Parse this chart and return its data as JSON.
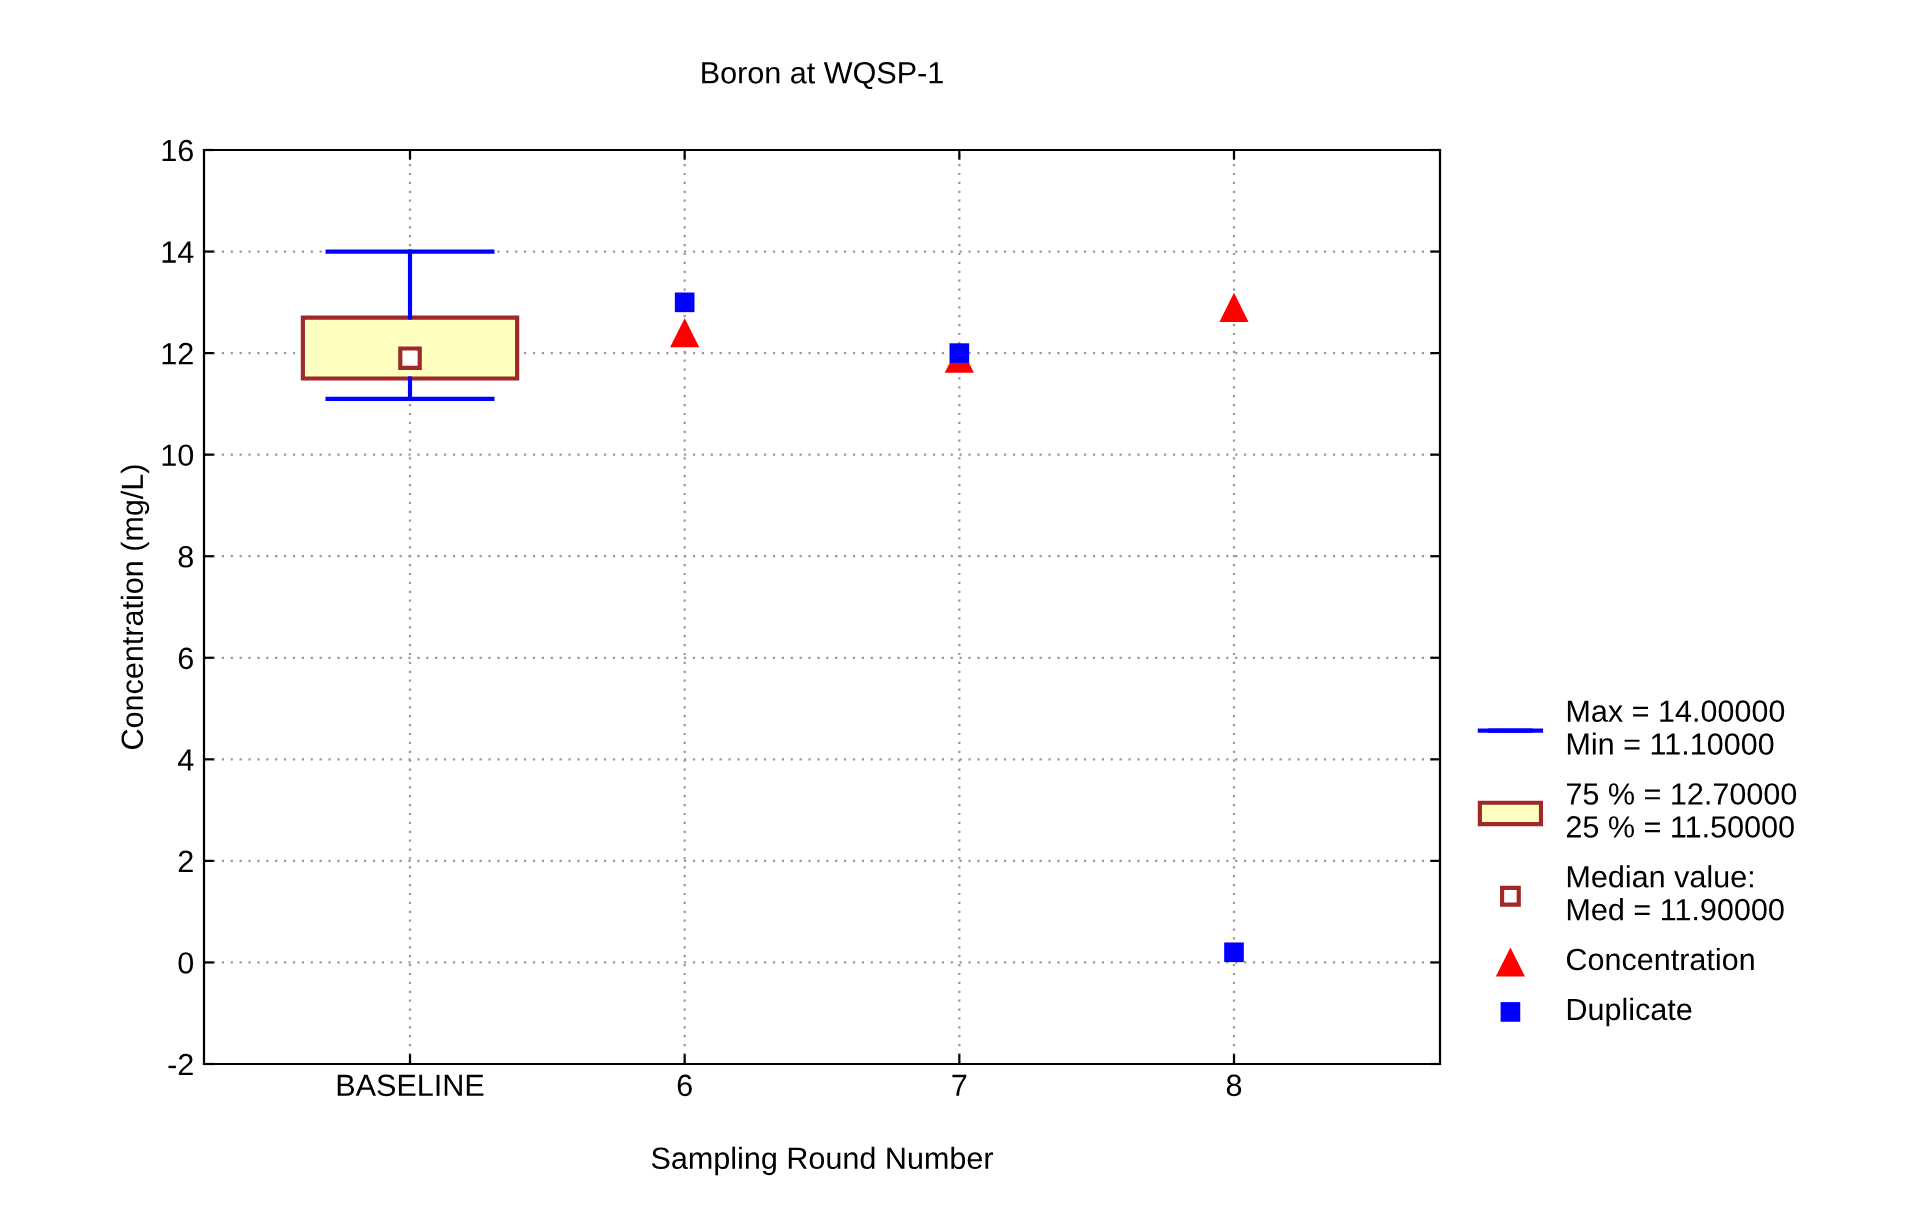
{
  "chart_data": {
    "type": "box",
    "title": "Boron at WQSP-1",
    "xlabel": "Sampling Round Number",
    "ylabel": "Concentration (mg/L)",
    "categories": [
      "BASELINE",
      "6",
      "7",
      "8"
    ],
    "ylim": [
      -2,
      16
    ],
    "yticks": [
      -2,
      0,
      2,
      4,
      6,
      8,
      10,
      12,
      14,
      16
    ],
    "grid": true,
    "legend": "right",
    "annotations": [
      "Max = 14.00000\nMin = 11.10000",
      "75 % = 12.70000\n25 % = 11.50000",
      "Median value:\nMed = 11.90000"
    ],
    "series": [
      {
        "color": "#ffffc0",
        "boxes": [
          {
            "low": 11.1,
            "q1": 11.5,
            "median": 11.9,
            "q3": 12.7,
            "high": 14.0
          },
          null,
          null,
          null
        ]
      },
      {
        "type": "scatter",
        "name": "Concentration",
        "color": "#ff0000",
        "marker": "triangle",
        "x": [
          "6",
          "7",
          "8"
        ],
        "values": [
          12.4,
          11.9,
          12.9
        ]
      },
      {
        "type": "scatter",
        "name": "Duplicate",
        "color": "#0000ff",
        "marker": "square",
        "x": [
          "6",
          "7",
          "8"
        ],
        "values": [
          13.0,
          12.0,
          0.2
        ]
      }
    ]
  }
}
